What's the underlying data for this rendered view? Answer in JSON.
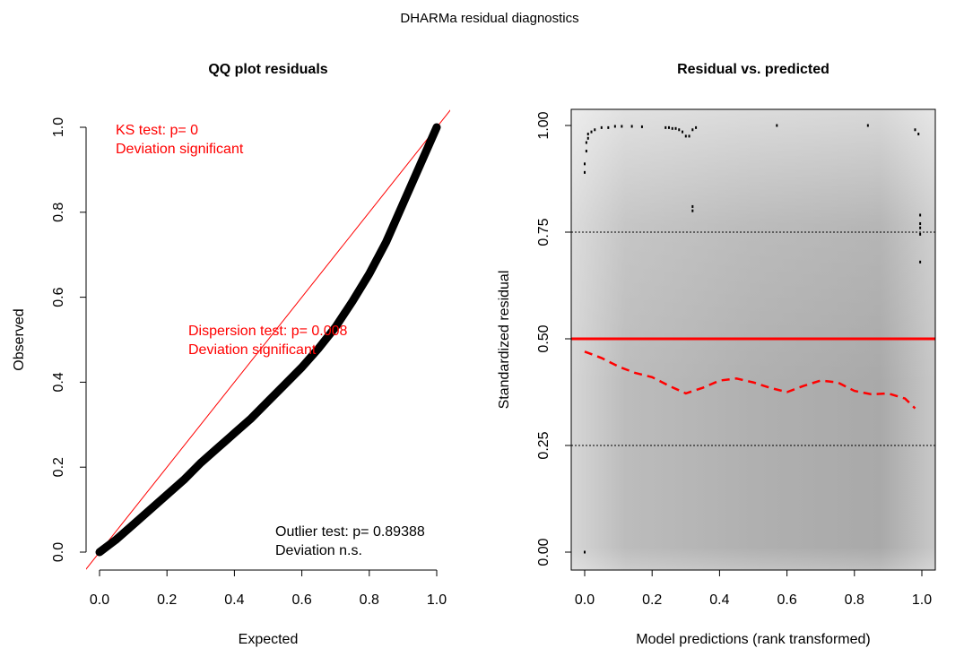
{
  "page_title": "DHARMa residual diagnostics",
  "colors": {
    "accent": "#ff0000",
    "points": "#000000",
    "shade_light": "#d9d9d9",
    "shade_dark": "#a6a6a6"
  },
  "chart_data": [
    {
      "type": "scatter",
      "title": "QQ plot residuals",
      "xlabel": "Expected",
      "ylabel": "Observed",
      "xlim": [
        0,
        1
      ],
      "ylim": [
        0,
        1
      ],
      "x_ticks": [
        "0.0",
        "0.2",
        "0.4",
        "0.6",
        "0.8",
        "1.0"
      ],
      "y_ticks": [
        "0.0",
        "0.2",
        "0.4",
        "0.6",
        "0.8",
        "1.0"
      ],
      "reference_line": {
        "from": [
          0,
          0
        ],
        "to": [
          1,
          1
        ]
      },
      "series": [
        {
          "x": [
            0.0,
            0.05,
            0.1,
            0.15,
            0.2,
            0.25,
            0.3,
            0.35,
            0.4,
            0.45,
            0.5,
            0.55,
            0.6,
            0.65,
            0.7,
            0.75,
            0.8,
            0.85,
            0.9,
            0.95,
            1.0
          ],
          "y": [
            0.0,
            0.03,
            0.065,
            0.1,
            0.135,
            0.17,
            0.21,
            0.245,
            0.28,
            0.315,
            0.355,
            0.395,
            0.435,
            0.48,
            0.53,
            0.59,
            0.655,
            0.73,
            0.82,
            0.91,
            1.0
          ]
        }
      ],
      "annotations": {
        "ks_test": "KS test: p= 0",
        "ks_result": "Deviation  significant",
        "dispersion_test": "Dispersion test: p= 0.008",
        "dispersion_result": "Deviation  significant",
        "outlier_test": "Outlier test: p= 0.89388",
        "outlier_result": "Deviation  n.s."
      }
    },
    {
      "type": "scatter",
      "title": "Residual vs. predicted",
      "xlabel": "Model predictions (rank transformed)",
      "ylabel": "Standardized residual",
      "xlim": [
        -0.05,
        1.05
      ],
      "ylim": [
        -0.025,
        1.03
      ],
      "x_ticks": [
        "0.0",
        "0.2",
        "0.4",
        "0.6",
        "0.8",
        "1.0"
      ],
      "y_ticks": [
        "0.00",
        "0.25",
        "0.50",
        "0.75",
        "1.00"
      ],
      "horizontal_lines": [
        {
          "y": 0.5,
          "style": "solid",
          "color": "#ff0000"
        },
        {
          "y": 0.25,
          "style": "dotted",
          "color": "#000000"
        },
        {
          "y": 0.75,
          "style": "dotted",
          "color": "#000000"
        }
      ],
      "smooth_line": {
        "x": [
          0.0,
          0.05,
          0.1,
          0.15,
          0.2,
          0.25,
          0.3,
          0.35,
          0.4,
          0.45,
          0.5,
          0.55,
          0.6,
          0.65,
          0.7,
          0.75,
          0.8,
          0.85,
          0.9,
          0.95,
          0.98
        ],
        "y": [
          0.47,
          0.455,
          0.435,
          0.42,
          0.41,
          0.39,
          0.372,
          0.385,
          0.402,
          0.407,
          0.398,
          0.385,
          0.375,
          0.39,
          0.402,
          0.398,
          0.378,
          0.37,
          0.372,
          0.36,
          0.337
        ]
      },
      "outlier_points": {
        "x": [
          0.0,
          0.0,
          0.0,
          0.005,
          0.005,
          0.01,
          0.01,
          0.02,
          0.03,
          0.05,
          0.07,
          0.09,
          0.11,
          0.14,
          0.17,
          0.24,
          0.25,
          0.26,
          0.27,
          0.28,
          0.29,
          0.3,
          0.31,
          0.32,
          0.33,
          0.32,
          0.32,
          0.57,
          0.84,
          0.98,
          0.99,
          0.995,
          0.995,
          0.995,
          0.995,
          0.995
        ],
        "y": [
          0.0,
          0.89,
          0.91,
          0.94,
          0.96,
          0.97,
          0.98,
          0.985,
          0.99,
          0.995,
          0.995,
          0.998,
          0.998,
          0.998,
          0.997,
          0.995,
          0.995,
          0.993,
          0.993,
          0.99,
          0.985,
          0.975,
          0.975,
          0.99,
          0.995,
          0.81,
          0.8,
          1.0,
          1.0,
          0.99,
          0.98,
          0.79,
          0.77,
          0.76,
          0.745,
          0.68
        ]
      }
    }
  ]
}
